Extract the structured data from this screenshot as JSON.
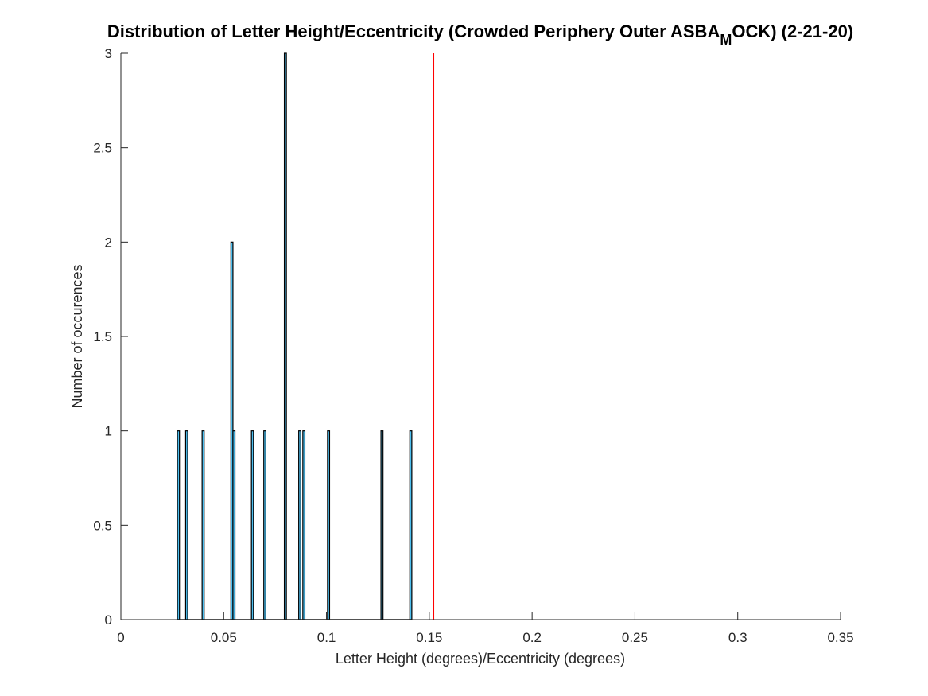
{
  "chart_data": {
    "type": "bar",
    "title": {
      "main": "Distribution of Letter Height/Eccentricity (Crowded Periphery Outer ASBA",
      "subscript": "M",
      "rest": "OCK) (2-21-20)"
    },
    "xlabel": "Letter Height (degrees)/Eccentricity (degrees)",
    "ylabel": "Number of occurences",
    "xlim": [
      0,
      0.35
    ],
    "ylim": [
      0,
      3
    ],
    "xticks": [
      0,
      0.05,
      0.1,
      0.15,
      0.2,
      0.25,
      0.3,
      0.35
    ],
    "xtick_labels": [
      "0",
      "0.05",
      "0.1",
      "0.15",
      "0.2",
      "0.25",
      "0.3",
      "0.35"
    ],
    "yticks": [
      0,
      0.5,
      1,
      1.5,
      2,
      2.5,
      3
    ],
    "ytick_labels": [
      "0",
      "0.5",
      "1",
      "1.5",
      "2",
      "2.5",
      "3"
    ],
    "bin_width": 0.001,
    "series": [
      {
        "x": [
          0.028,
          0.032,
          0.04,
          0.054,
          0.055,
          0.064,
          0.07,
          0.08,
          0.087,
          0.089,
          0.101,
          0.127,
          0.141
        ],
        "values": [
          1,
          1,
          1,
          2,
          1,
          1,
          1,
          3,
          1,
          1,
          1,
          1,
          1
        ],
        "color": "#4DBEEE",
        "edge_color": "#000000"
      }
    ],
    "reference_line": {
      "x": 0.152,
      "color": "#FF0000"
    },
    "grid": false
  }
}
